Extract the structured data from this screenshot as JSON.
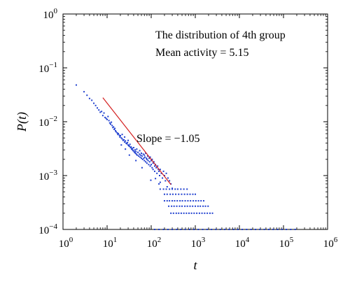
{
  "chart_data": {
    "type": "scatter",
    "x_scale": "log",
    "y_scale": "log",
    "xlim": [
      1,
      1000000
    ],
    "ylim": [
      0.0001,
      1
    ],
    "xlabel": "t",
    "ylabel": "P(t)",
    "x_ticks": [
      {
        "base": "10",
        "exp": "0"
      },
      {
        "base": "10",
        "exp": "1"
      },
      {
        "base": "10",
        "exp": "2"
      },
      {
        "base": "10",
        "exp": "3"
      },
      {
        "base": "10",
        "exp": "4"
      },
      {
        "base": "10",
        "exp": "5"
      },
      {
        "base": "10",
        "exp": "6"
      }
    ],
    "y_ticks": [
      {
        "base": "10",
        "exp": "0"
      },
      {
        "base": "10",
        "exp": "−1"
      },
      {
        "base": "10",
        "exp": "−2"
      },
      {
        "base": "10",
        "exp": "−3"
      },
      {
        "base": "10",
        "exp": "−4"
      }
    ],
    "annotations": {
      "line1": "The distribution of 4th group",
      "line2": "Mean activity = 5.15",
      "slope": "Slope = −1.05"
    },
    "point_color": "#1f3fcf",
    "fit_color": "#d42020",
    "fit_line": {
      "x": [
        8,
        280
      ],
      "y": [
        0.028,
        0.00068
      ],
      "slope": -1.05
    },
    "series": [
      {
        "points": [
          [
            2,
            0.048
          ],
          [
            3,
            0.036
          ],
          [
            3.5,
            0.031
          ],
          [
            4,
            0.027
          ],
          [
            4.5,
            0.025
          ],
          [
            5,
            0.022
          ],
          [
            5.5,
            0.02
          ],
          [
            6,
            0.018
          ],
          [
            6.5,
            0.0165
          ],
          [
            7,
            0.015
          ],
          [
            7.5,
            0.0155
          ],
          [
            8,
            0.013
          ],
          [
            8.5,
            0.0145
          ],
          [
            9,
            0.012
          ],
          [
            9.5,
            0.0115
          ],
          [
            10,
            0.011
          ],
          [
            10.5,
            0.0125
          ],
          [
            11,
            0.0105
          ],
          [
            11.5,
            0.0095
          ],
          [
            12,
            0.009
          ],
          [
            12.5,
            0.0098
          ],
          [
            13,
            0.0085
          ],
          [
            13.5,
            0.0078
          ],
          [
            14,
            0.008
          ],
          [
            14.5,
            0.0072
          ],
          [
            15,
            0.0075
          ],
          [
            15.5,
            0.0068
          ],
          [
            16,
            0.0065
          ],
          [
            17,
            0.0062
          ],
          [
            17.5,
            0.0058
          ],
          [
            18,
            0.006
          ],
          [
            19,
            0.0056
          ],
          [
            19.5,
            0.0052
          ],
          [
            20,
            0.0055
          ],
          [
            21,
            0.005
          ],
          [
            22,
            0.0048
          ],
          [
            22,
            0.0058
          ],
          [
            23,
            0.0045
          ],
          [
            24,
            0.0046
          ],
          [
            25,
            0.0042
          ],
          [
            25,
            0.0052
          ],
          [
            26,
            0.0044
          ],
          [
            27,
            0.004
          ],
          [
            28,
            0.0039
          ],
          [
            29,
            0.0041
          ],
          [
            30,
            0.0037
          ],
          [
            30,
            0.0045
          ],
          [
            31,
            0.0036
          ],
          [
            32,
            0.0035
          ],
          [
            33,
            0.0038
          ],
          [
            34,
            0.0033
          ],
          [
            35,
            0.0034
          ],
          [
            36,
            0.0031
          ],
          [
            37,
            0.0032
          ],
          [
            38,
            0.003
          ],
          [
            39,
            0.0029
          ],
          [
            40,
            0.0033
          ],
          [
            41,
            0.0028
          ],
          [
            42,
            0.0027
          ],
          [
            43,
            0.003
          ],
          [
            44,
            0.0026
          ],
          [
            45,
            0.0028
          ],
          [
            46,
            0.0025
          ],
          [
            47,
            0.0031
          ],
          [
            48,
            0.0024
          ],
          [
            50,
            0.0027
          ],
          [
            52,
            0.0023
          ],
          [
            54,
            0.0025
          ],
          [
            55,
            0.0029
          ],
          [
            56,
            0.0022
          ],
          [
            58,
            0.0024
          ],
          [
            60,
            0.0021
          ],
          [
            60,
            0.0026
          ],
          [
            62,
            0.0023
          ],
          [
            64,
            0.002
          ],
          [
            66,
            0.0025
          ],
          [
            68,
            0.0021
          ],
          [
            70,
            0.0019
          ],
          [
            70,
            0.0024
          ],
          [
            72,
            0.0022
          ],
          [
            75,
            0.0018
          ],
          [
            75,
            0.0026
          ],
          [
            78,
            0.0021
          ],
          [
            80,
            0.002
          ],
          [
            80,
            0.0017
          ],
          [
            83,
            0.0023
          ],
          [
            85,
            0.0019
          ],
          [
            88,
            0.0016
          ],
          [
            90,
            0.0021
          ],
          [
            92,
            0.0018
          ],
          [
            95,
            0.0015
          ],
          [
            95,
            0.0022
          ],
          [
            100,
            0.0019
          ],
          [
            100,
            0.0016
          ],
          [
            105,
            0.0014
          ],
          [
            105,
            0.002
          ],
          [
            110,
            0.0017
          ],
          [
            110,
            0.0013
          ],
          [
            115,
            0.0018
          ],
          [
            120,
            0.0015
          ],
          [
            120,
            0.0012
          ],
          [
            125,
            0.0016
          ],
          [
            130,
            0.0014
          ],
          [
            135,
            0.0011
          ],
          [
            140,
            0.0015
          ],
          [
            145,
            0.0013
          ],
          [
            150,
            0.0012
          ],
          [
            155,
            0.001
          ],
          [
            160,
            0.0013
          ],
          [
            170,
            0.0011
          ],
          [
            180,
            0.0009
          ],
          [
            190,
            0.0012
          ],
          [
            200,
            0.001
          ],
          [
            210,
            0.0008
          ],
          [
            220,
            0.0011
          ],
          [
            240,
            0.0009
          ],
          [
            260,
            0.0008
          ],
          [
            280,
            0.0007
          ],
          [
            98,
            0.00082
          ],
          [
            125,
            0.00088
          ],
          [
            160,
            0.00075
          ],
          [
            62,
            0.0014
          ],
          [
            45,
            0.0019
          ],
          [
            32,
            0.0024
          ],
          [
            26,
            0.0031
          ],
          [
            21,
            0.0037
          ],
          [
            150,
            0.0007
          ],
          [
            230,
            0.00062
          ],
          [
            300,
            0.00058
          ],
          [
            160,
            0.00056
          ],
          [
            190,
            0.00056
          ],
          [
            220,
            0.00056
          ],
          [
            260,
            0.00056
          ],
          [
            300,
            0.00056
          ],
          [
            350,
            0.00056
          ],
          [
            400,
            0.00056
          ],
          [
            470,
            0.00056
          ],
          [
            550,
            0.00056
          ],
          [
            650,
            0.00056
          ],
          [
            200,
            0.00045
          ],
          [
            230,
            0.00045
          ],
          [
            270,
            0.00045
          ],
          [
            310,
            0.00045
          ],
          [
            360,
            0.00045
          ],
          [
            420,
            0.00045
          ],
          [
            490,
            0.00045
          ],
          [
            570,
            0.00045
          ],
          [
            660,
            0.00045
          ],
          [
            760,
            0.00045
          ],
          [
            880,
            0.00045
          ],
          [
            1000,
            0.00045
          ],
          [
            200,
            0.00034
          ],
          [
            230,
            0.00034
          ],
          [
            260,
            0.00034
          ],
          [
            300,
            0.00034
          ],
          [
            340,
            0.00034
          ],
          [
            390,
            0.00034
          ],
          [
            450,
            0.00034
          ],
          [
            510,
            0.00034
          ],
          [
            590,
            0.00034
          ],
          [
            680,
            0.00034
          ],
          [
            780,
            0.00034
          ],
          [
            900,
            0.00034
          ],
          [
            1030,
            0.00034
          ],
          [
            1180,
            0.00034
          ],
          [
            1350,
            0.00034
          ],
          [
            1550,
            0.00034
          ],
          [
            250,
            0.00027
          ],
          [
            290,
            0.00027
          ],
          [
            330,
            0.00027
          ],
          [
            380,
            0.00027
          ],
          [
            440,
            0.00027
          ],
          [
            500,
            0.00027
          ],
          [
            580,
            0.00027
          ],
          [
            660,
            0.00027
          ],
          [
            760,
            0.00027
          ],
          [
            870,
            0.00027
          ],
          [
            1000,
            0.00027
          ],
          [
            1150,
            0.00027
          ],
          [
            1300,
            0.00027
          ],
          [
            1500,
            0.00027
          ],
          [
            1700,
            0.00027
          ],
          [
            1950,
            0.00027
          ],
          [
            280,
            0.0002
          ],
          [
            320,
            0.0002
          ],
          [
            370,
            0.0002
          ],
          [
            420,
            0.0002
          ],
          [
            480,
            0.0002
          ],
          [
            550,
            0.0002
          ],
          [
            630,
            0.0002
          ],
          [
            720,
            0.0002
          ],
          [
            820,
            0.0002
          ],
          [
            940,
            0.0002
          ],
          [
            1080,
            0.0002
          ],
          [
            1240,
            0.0002
          ],
          [
            1420,
            0.0002
          ],
          [
            1630,
            0.0002
          ],
          [
            1870,
            0.0002
          ],
          [
            2150,
            0.0002
          ],
          [
            2450,
            0.0002
          ],
          [
            120,
            0.0001
          ],
          [
            150,
            0.0001
          ],
          [
            190,
            0.0001
          ],
          [
            240,
            0.0001
          ],
          [
            300,
            0.0001
          ],
          [
            380,
            0.0001
          ],
          [
            470,
            0.0001
          ],
          [
            590,
            0.0001
          ],
          [
            740,
            0.0001
          ],
          [
            930,
            0.0001
          ],
          [
            1170,
            0.0001
          ],
          [
            1470,
            0.0001
          ],
          [
            1850,
            0.0001
          ],
          [
            2330,
            0.0001
          ],
          [
            2930,
            0.0001
          ],
          [
            3690,
            0.0001
          ],
          [
            4640,
            0.0001
          ],
          [
            5840,
            0.0001
          ],
          [
            7350,
            0.0001
          ],
          [
            9250,
            0.0001
          ],
          [
            11600,
            0.0001
          ],
          [
            14600,
            0.0001
          ],
          [
            18400,
            0.0001
          ],
          [
            23200,
            0.0001
          ],
          [
            29200,
            0.0001
          ],
          [
            36800,
            0.0001
          ],
          [
            46300,
            0.0001
          ],
          [
            58300,
            0.0001
          ],
          [
            73400,
            0.0001
          ],
          [
            92400,
            0.0001
          ],
          [
            116000,
            0.0001
          ],
          [
            146000,
            0.0001
          ],
          [
            184000,
            0.0001
          ]
        ]
      }
    ]
  }
}
